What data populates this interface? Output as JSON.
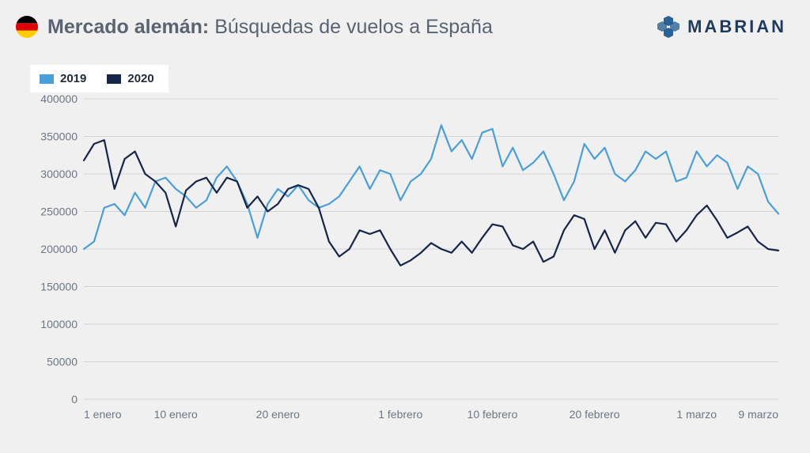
{
  "header": {
    "title_bold": "Mercado alemán:",
    "title_light": "Búsquedas de vuelos a España",
    "flag": {
      "top": "#000000",
      "mid": "#dd0000",
      "bot": "#ffce00"
    },
    "logo_text": "MABRIAN",
    "logo_color": "#1e5a8e"
  },
  "legend": {
    "items": [
      {
        "label": "2019",
        "color": "#4a9fd8"
      },
      {
        "label": "2020",
        "color": "#15264a"
      }
    ],
    "bg": "#ffffff"
  },
  "chart": {
    "type": "line",
    "background": "#f0f0f0",
    "grid_color": "#cfd5db",
    "axis_color": "#6b7684",
    "axis_fontsize": 14,
    "line_width": 2.2,
    "ylim": [
      0,
      400000
    ],
    "ytick_step": 50000,
    "yticks": [
      0,
      50000,
      100000,
      150000,
      200000,
      250000,
      300000,
      350000,
      400000
    ],
    "x_count": 69,
    "xticks": [
      {
        "i": 0,
        "label": "1 enero"
      },
      {
        "i": 9,
        "label": "10 enero"
      },
      {
        "i": 19,
        "label": "20 enero"
      },
      {
        "i": 31,
        "label": "1 febrero"
      },
      {
        "i": 40,
        "label": "10 febrero"
      },
      {
        "i": 50,
        "label": "20 febrero"
      },
      {
        "i": 60,
        "label": "1 marzo"
      },
      {
        "i": 68,
        "label": "9 marzo"
      }
    ],
    "series": [
      {
        "name": "2019",
        "color": "#4a9fd8",
        "values": [
          200000,
          210000,
          255000,
          260000,
          245000,
          275000,
          255000,
          290000,
          295000,
          280000,
          270000,
          255000,
          265000,
          295000,
          310000,
          290000,
          260000,
          215000,
          260000,
          280000,
          270000,
          285000,
          265000,
          255000,
          260000,
          270000,
          290000,
          310000,
          280000,
          305000,
          300000,
          265000,
          290000,
          300000,
          320000,
          365000,
          330000,
          345000,
          320000,
          355000,
          360000,
          310000,
          335000,
          305000,
          315000,
          330000,
          300000,
          265000,
          290000,
          340000,
          320000,
          335000,
          300000,
          290000,
          305000,
          330000,
          320000,
          330000,
          290000,
          295000,
          330000,
          310000,
          325000,
          315000,
          280000,
          310000,
          300000,
          263000,
          247000
        ]
      },
      {
        "name": "2020",
        "color": "#15264a",
        "values": [
          318000,
          340000,
          345000,
          280000,
          320000,
          330000,
          300000,
          290000,
          275000,
          230000,
          278000,
          290000,
          295000,
          275000,
          295000,
          290000,
          255000,
          270000,
          250000,
          260000,
          280000,
          285000,
          280000,
          255000,
          210000,
          190000,
          200000,
          225000,
          220000,
          225000,
          200000,
          178000,
          185000,
          195000,
          208000,
          200000,
          195000,
          210000,
          195000,
          215000,
          233000,
          230000,
          205000,
          200000,
          210000,
          183000,
          190000,
          225000,
          245000,
          240000,
          200000,
          225000,
          195000,
          225000,
          237000,
          215000,
          235000,
          233000,
          210000,
          225000,
          245000,
          258000,
          238000,
          215000,
          222000,
          230000,
          210000,
          200000,
          198000
        ]
      }
    ]
  }
}
